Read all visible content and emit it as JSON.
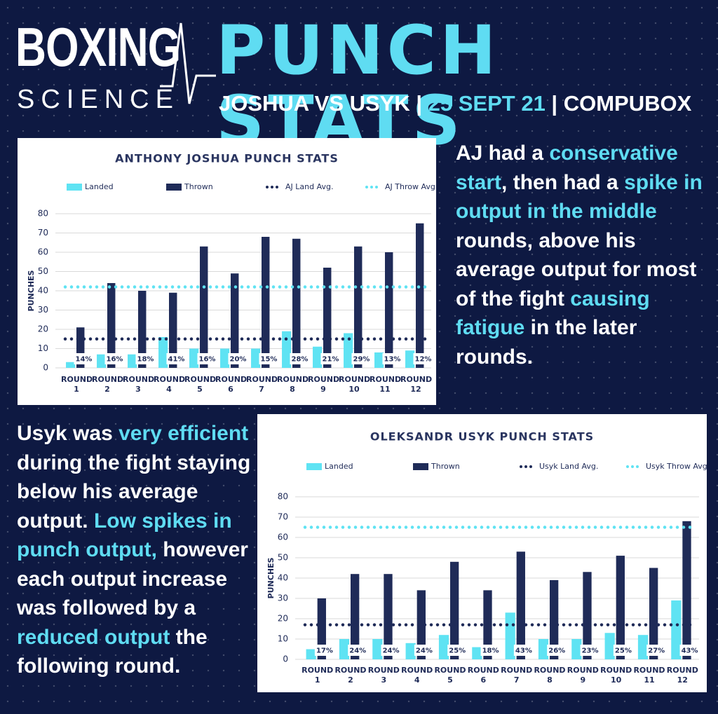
{
  "header": {
    "logo_top": "BOXING",
    "logo_bottom": "SCIENCE",
    "title": "PUNCH STATS",
    "highlight_color": "#5fdcf2",
    "subtitle": [
      {
        "text": "JOSHUA VS USYK | ",
        "highlight": false
      },
      {
        "text": "25 SEPT 21",
        "highlight": true
      },
      {
        "text": " | COMPUBOX",
        "highlight": false
      }
    ]
  },
  "paragraphs": [
    [
      {
        "text": "AJ had a ",
        "highlight": false
      },
      {
        "text": "conservative start",
        "highlight": true
      },
      {
        "text": ", then had a ",
        "highlight": false
      },
      {
        "text": "spike in output in the middle",
        "highlight": true
      },
      {
        "text": " rounds, above his average output for most of the fight ",
        "highlight": false
      },
      {
        "text": "causing fatigue",
        "highlight": true
      },
      {
        "text": " in the later rounds.",
        "highlight": false
      }
    ],
    [
      {
        "text": "Usyk was ",
        "highlight": false
      },
      {
        "text": "very efficient",
        "highlight": true
      },
      {
        "text": " during the fight staying below his average output. ",
        "highlight": false
      },
      {
        "text": "Low spikes in punch output,",
        "highlight": true
      },
      {
        "text": " however each output increase was followed by a ",
        "highlight": false
      },
      {
        "text": "reduced output",
        "highlight": true
      },
      {
        "text": " the following round.",
        "highlight": false
      }
    ]
  ],
  "chart_data": [
    {
      "type": "bar",
      "title": "ANTHONY JOSHUA PUNCH STATS",
      "y_label": "PUNCHES",
      "categories": [
        "ROUND 1",
        "ROUND 2",
        "ROUND 3",
        "ROUND 4",
        "ROUND 5",
        "ROUND 6",
        "ROUND 7",
        "ROUND 8",
        "ROUND 9",
        "ROUND 10",
        "ROUND 11",
        "ROUND 12"
      ],
      "series": [
        {
          "name": "Landed",
          "color": "#5fe3f3",
          "values": [
            3,
            7,
            7,
            16,
            10,
            10,
            10,
            19,
            11,
            18,
            8,
            9
          ]
        },
        {
          "name": "Thrown",
          "color": "#1f2b58",
          "values": [
            21,
            44,
            40,
            39,
            63,
            49,
            68,
            67,
            52,
            63,
            60,
            75
          ]
        }
      ],
      "avg_lines": [
        {
          "name": "AJ Land Avg.",
          "color": "#1f2b58",
          "value": 15
        },
        {
          "name": "AJ Throw Avg.",
          "color": "#5fe3f3",
          "value": 42
        }
      ],
      "accuracy": {
        "values": [
          14,
          16,
          18,
          41,
          16,
          20,
          15,
          28,
          21,
          29,
          13,
          12
        ],
        "value_labels": [
          "14%",
          "16%",
          "18%",
          "41%",
          "16%",
          "20%",
          "15%",
          "28%",
          "21%",
          "29%",
          "13%",
          "12%"
        ]
      },
      "ylim": [
        0,
        80
      ],
      "yticks": [
        0,
        10,
        20,
        30,
        40,
        50,
        60,
        70,
        80
      ],
      "grid": true
    },
    {
      "type": "bar",
      "title": "OLEKSANDR USYK PUNCH STATS",
      "y_label": "PUNCHES",
      "categories": [
        "ROUND 1",
        "ROUND 2",
        "ROUND 3",
        "ROUND 4",
        "ROUND 5",
        "ROUND 6",
        "ROUND 7",
        "ROUND 8",
        "ROUND 9",
        "ROUND 10",
        "ROUND 11",
        "ROUND 12"
      ],
      "series": [
        {
          "name": "Landed",
          "color": "#5fe3f3",
          "values": [
            5,
            10,
            10,
            8,
            12,
            6,
            23,
            10,
            10,
            13,
            12,
            29
          ]
        },
        {
          "name": "Thrown",
          "color": "#1f2b58",
          "values": [
            30,
            42,
            42,
            34,
            48,
            34,
            53,
            39,
            43,
            51,
            45,
            68
          ]
        }
      ],
      "avg_lines": [
        {
          "name": "Usyk Land Avg.",
          "color": "#1f2b58",
          "value": 17
        },
        {
          "name": "Usyk Throw Avg.",
          "color": "#5fe3f3",
          "value": 65
        }
      ],
      "accuracy": {
        "values": [
          17,
          24,
          24,
          24,
          25,
          18,
          43,
          26,
          23,
          25,
          27,
          43
        ],
        "value_labels": [
          "17%",
          "24%",
          "24%",
          "24%",
          "25%",
          "18%",
          "43%",
          "26%",
          "23%",
          "25%",
          "27%",
          "43%"
        ]
      },
      "ylim": [
        0,
        80
      ],
      "yticks": [
        0,
        10,
        20,
        30,
        40,
        50,
        60,
        70,
        80
      ],
      "grid": true
    }
  ]
}
